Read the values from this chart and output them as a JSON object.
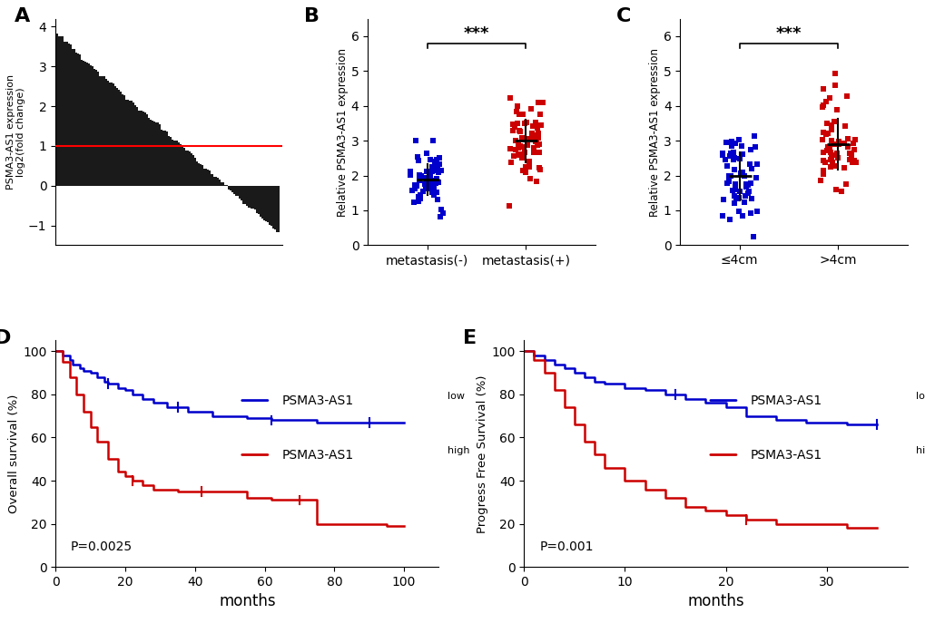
{
  "panel_A": {
    "ylabel": "PSMA3-AS1 expression\nlog2(fold change)",
    "ylim": [
      -1.5,
      4.2
    ],
    "yticks": [
      -1,
      0,
      1,
      2,
      3,
      4
    ],
    "n_bars": 120,
    "red_line_y": 1.0,
    "bar_color": "#1a1a1a"
  },
  "panel_B": {
    "ylabel": "Relative PSMA3-AS1 expression",
    "ylim": [
      0,
      6.5
    ],
    "yticks": [
      0,
      1,
      2,
      3,
      4,
      5,
      6
    ],
    "groups": [
      "metastasis(-)",
      "metastasis(+)"
    ],
    "group1_mean": 1.8,
    "group1_sd": 0.5,
    "group2_mean": 3.0,
    "group2_sd": 0.7,
    "dot_color1": "#0000cc",
    "dot_color2": "#cc0000",
    "significance": "***",
    "n_group1": 60,
    "n_group2": 60
  },
  "panel_C": {
    "ylabel": "Relative PSMA3-AS1 expression",
    "ylim": [
      0,
      6.5
    ],
    "yticks": [
      0,
      1,
      2,
      3,
      4,
      5,
      6
    ],
    "groups": [
      "≤4cm",
      ">4cm"
    ],
    "group1_mean": 2.0,
    "group1_sd": 0.6,
    "group2_mean": 3.0,
    "group2_sd": 0.8,
    "dot_color1": "#0000cc",
    "dot_color2": "#cc0000",
    "significance": "***",
    "n_group1": 60,
    "n_group2": 60
  },
  "panel_D": {
    "ylabel": "Overall survival (%)",
    "xlabel": "months",
    "xlim": [
      0,
      110
    ],
    "ylim": [
      0,
      105
    ],
    "xticks": [
      0,
      20,
      40,
      60,
      80,
      100
    ],
    "yticks": [
      0,
      20,
      40,
      60,
      80,
      100
    ],
    "p_value": "P=0.0025",
    "low_color": "#0000cc",
    "high_color": "#cc0000",
    "low_label": "PSMA3-AS1",
    "low_sup": "low",
    "high_label": "PSMA3-AS1",
    "high_sup": "high",
    "low_times": [
      0,
      2,
      4,
      5,
      7,
      8,
      10,
      12,
      14,
      15,
      18,
      20,
      22,
      25,
      28,
      32,
      38,
      45,
      50,
      55,
      62,
      68,
      75,
      85,
      90,
      100
    ],
    "low_surv": [
      100,
      98,
      96,
      94,
      92,
      91,
      90,
      88,
      86,
      85,
      83,
      82,
      80,
      78,
      76,
      74,
      72,
      70,
      70,
      69,
      68,
      68,
      67,
      67,
      67,
      67
    ],
    "high_times": [
      0,
      2,
      4,
      6,
      8,
      10,
      12,
      15,
      18,
      20,
      22,
      25,
      28,
      32,
      35,
      40,
      45,
      50,
      55,
      62,
      68,
      75,
      85,
      90,
      95,
      100
    ],
    "high_surv": [
      100,
      95,
      88,
      80,
      72,
      65,
      58,
      50,
      44,
      42,
      40,
      38,
      36,
      36,
      35,
      35,
      35,
      35,
      32,
      31,
      31,
      20,
      20,
      20,
      19,
      19
    ]
  },
  "panel_E": {
    "ylabel": "Progress Free Survival (%)",
    "xlabel": "months",
    "xlim": [
      0,
      38
    ],
    "ylim": [
      0,
      105
    ],
    "xticks": [
      0,
      10,
      20,
      30
    ],
    "yticks": [
      0,
      20,
      40,
      60,
      80,
      100
    ],
    "p_value": "P=0.001",
    "low_color": "#0000cc",
    "high_color": "#cc0000",
    "low_label": "PSMA3-AS1",
    "low_sup": "low",
    "high_label": "PSMA3-AS1",
    "high_sup": "high",
    "low_times": [
      0,
      1,
      2,
      3,
      4,
      5,
      6,
      7,
      8,
      10,
      12,
      14,
      16,
      18,
      20,
      22,
      25,
      28,
      32,
      35
    ],
    "low_surv": [
      100,
      98,
      96,
      94,
      92,
      90,
      88,
      86,
      85,
      83,
      82,
      80,
      78,
      76,
      74,
      70,
      68,
      67,
      66,
      66
    ],
    "high_times": [
      0,
      1,
      2,
      3,
      4,
      5,
      6,
      7,
      8,
      10,
      12,
      14,
      16,
      18,
      20,
      22,
      25,
      28,
      32,
      35
    ],
    "high_surv": [
      100,
      96,
      90,
      82,
      74,
      66,
      58,
      52,
      46,
      40,
      36,
      32,
      28,
      26,
      24,
      22,
      20,
      20,
      18,
      18
    ]
  },
  "label_fontsize": 13,
  "panel_label_fontsize": 16,
  "tick_fontsize": 10,
  "axis_label_fontsize": 10
}
